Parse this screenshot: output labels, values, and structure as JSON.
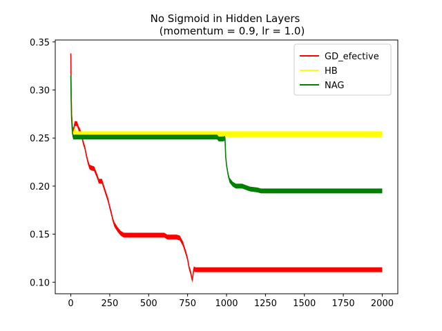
{
  "chart_data": {
    "type": "line",
    "title_line1": "No Sigmoid in Hidden Layers",
    "title_line2": "(momentum = 0.9, lr = 1.0)",
    "xlabel": "",
    "ylabel": "",
    "xlim": [
      -100,
      2100
    ],
    "ylim": [
      0.088,
      0.352
    ],
    "xticks": [
      0,
      250,
      500,
      750,
      1000,
      1250,
      1500,
      1750,
      2000
    ],
    "yticks": [
      0.1,
      0.15,
      0.2,
      0.25,
      0.3,
      0.35
    ],
    "ytick_labels": [
      "0.10",
      "0.15",
      "0.20",
      "0.25",
      "0.30",
      "0.35"
    ],
    "grid": false,
    "legend_position": "top-right",
    "series": [
      {
        "name": "GD_efective",
        "color": "#ff0000",
        "x": [
          0,
          2,
          5,
          10,
          15,
          20,
          25,
          30,
          40,
          50,
          60,
          70,
          80,
          90,
          100,
          110,
          120,
          130,
          150,
          170,
          180,
          200,
          220,
          240,
          250,
          260,
          270,
          280,
          300,
          320,
          340,
          350,
          400,
          450,
          500,
          550,
          600,
          620,
          650,
          680,
          700,
          720,
          740,
          750,
          760,
          770,
          780,
          790,
          800,
          900,
          1000,
          1250,
          1500,
          1750,
          2000
        ],
        "y": [
          0.338,
          0.3,
          0.275,
          0.262,
          0.258,
          0.26,
          0.265,
          0.265,
          0.265,
          0.26,
          0.257,
          0.252,
          0.245,
          0.24,
          0.232,
          0.225,
          0.22,
          0.219,
          0.218,
          0.21,
          0.205,
          0.205,
          0.195,
          0.185,
          0.178,
          0.172,
          0.165,
          0.16,
          0.155,
          0.151,
          0.149,
          0.149,
          0.149,
          0.149,
          0.149,
          0.149,
          0.149,
          0.147,
          0.147,
          0.147,
          0.146,
          0.14,
          0.13,
          0.124,
          0.115,
          0.11,
          0.102,
          0.114,
          0.113,
          0.113,
          0.113,
          0.113,
          0.113,
          0.113,
          0.113
        ],
        "band": 0.0025
      },
      {
        "name": "HB",
        "color": "#ffff00",
        "x": [
          0,
          2,
          5,
          10,
          15,
          20,
          25,
          30,
          40,
          50,
          100,
          200,
          500,
          1000,
          1500,
          2000
        ],
        "y": [
          0.313,
          0.29,
          0.27,
          0.257,
          0.253,
          0.256,
          0.258,
          0.256,
          0.254,
          0.254,
          0.254,
          0.254,
          0.254,
          0.254,
          0.254,
          0.254
        ],
        "band": 0.003
      },
      {
        "name": "NAG",
        "color": "#008000",
        "x": [
          0,
          2,
          5,
          10,
          15,
          20,
          30,
          50,
          100,
          500,
          900,
          940,
          950,
          980,
          990,
          995,
          1000,
          1010,
          1020,
          1040,
          1060,
          1100,
          1150,
          1200,
          1220,
          1300,
          1500,
          1750,
          2000
        ],
        "y": [
          0.315,
          0.292,
          0.27,
          0.256,
          0.251,
          0.251,
          0.251,
          0.251,
          0.251,
          0.251,
          0.251,
          0.251,
          0.249,
          0.249,
          0.25,
          0.23,
          0.222,
          0.212,
          0.206,
          0.202,
          0.2,
          0.2,
          0.197,
          0.196,
          0.195,
          0.195,
          0.195,
          0.195,
          0.195
        ],
        "band": 0.0025
      }
    ]
  }
}
